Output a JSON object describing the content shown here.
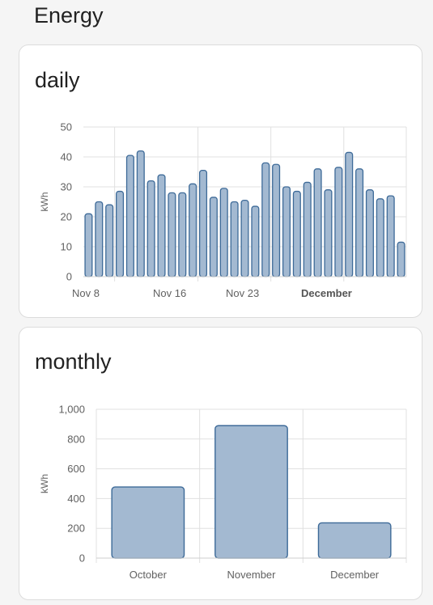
{
  "page": {
    "title": "Energy"
  },
  "colors": {
    "bar_fill": "#a3b9d1",
    "bar_stroke": "#3d6a98",
    "grid": "#e0e0e0"
  },
  "chart_data": [
    {
      "id": "daily",
      "type": "bar",
      "title": "daily",
      "ylabel": "kWh",
      "xlabel": "",
      "ylim": [
        0,
        50
      ],
      "yticks": [
        0,
        10,
        20,
        30,
        40,
        50
      ],
      "x_tick_labels": [
        {
          "label": "Nov 8",
          "bold": false
        },
        {
          "label": "Nov 16",
          "bold": false
        },
        {
          "label": "Nov 23",
          "bold": false
        },
        {
          "label": "December",
          "bold": true
        }
      ],
      "values": [
        21,
        25,
        24,
        28.5,
        40.5,
        42,
        32,
        34,
        28,
        28,
        31,
        35.5,
        26.5,
        29.5,
        25,
        25.5,
        23.5,
        38,
        37.5,
        30,
        28.5,
        31.5,
        36,
        29,
        36.5,
        41.5,
        36,
        29,
        26,
        27,
        11.5
      ],
      "grid": true
    },
    {
      "id": "monthly",
      "type": "bar",
      "title": "monthly",
      "ylabel": "kWh",
      "xlabel": "",
      "ylim": [
        0,
        1000
      ],
      "yticks": [
        0,
        200,
        400,
        600,
        800,
        1000
      ],
      "ytick_labels": [
        "0",
        "200",
        "400",
        "600",
        "800",
        "1,000"
      ],
      "categories": [
        "October",
        "November",
        "December"
      ],
      "values": [
        478,
        890,
        237
      ],
      "grid": true
    }
  ]
}
